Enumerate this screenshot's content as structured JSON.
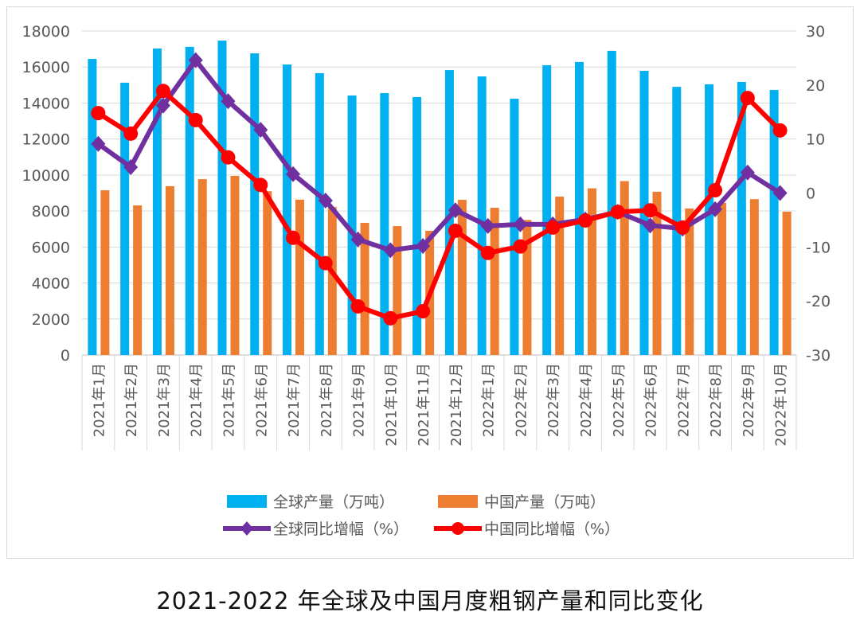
{
  "chart_data": {
    "type": "bar+line",
    "title": "2021-2022 年全球及中国月度粗钢产量和同比变化",
    "categories": [
      "2021年1月",
      "2021年2月",
      "2021年3月",
      "2021年4月",
      "2021年5月",
      "2021年6月",
      "2021年7月",
      "2021年8月",
      "2021年9月",
      "2021年10月",
      "2021年11月",
      "2021年12月",
      "2022年1月",
      "2022年2月",
      "2022年3月",
      "2022年4月",
      "2022年5月",
      "2022年6月",
      "2022年7月",
      "2022年8月",
      "2022年9月",
      "2022年10月"
    ],
    "y_left": {
      "range": [
        0,
        18000
      ],
      "ticks": [
        0,
        2000,
        4000,
        6000,
        8000,
        10000,
        12000,
        14000,
        16000,
        18000
      ]
    },
    "y_right": {
      "range": [
        -30,
        30
      ],
      "ticks": [
        -30,
        -20,
        -10,
        0,
        10,
        20,
        30
      ]
    },
    "grid": true,
    "legend_position": "bottom",
    "series": [
      {
        "name": "全球产量（万吨）",
        "type": "bar",
        "axis": "left",
        "color": "#00b0f0",
        "values": [
          16450,
          15130,
          17030,
          17120,
          17470,
          16760,
          16140,
          15660,
          14420,
          14550,
          14330,
          15830,
          15480,
          14240,
          16100,
          16280,
          16900,
          15790,
          14900,
          15040,
          15170,
          14730
        ]
      },
      {
        "name": "中国产量（万吨）",
        "type": "bar",
        "axis": "left",
        "color": "#ed7d31",
        "values": [
          9150,
          8310,
          9380,
          9770,
          9950,
          9100,
          8630,
          8220,
          7340,
          7160,
          6900,
          8620,
          8180,
          7500,
          8800,
          9260,
          9660,
          9070,
          8140,
          8450,
          8660,
          7960
        ]
      },
      {
        "name": "全球同比增幅（%）",
        "type": "line",
        "axis": "right",
        "color": "#7030a0",
        "marker": "diamond",
        "values": [
          9.1,
          4.8,
          16.2,
          24.6,
          17.0,
          11.7,
          3.5,
          -1.4,
          -8.6,
          -10.6,
          -9.8,
          -3.2,
          -6.1,
          -5.8,
          -5.8,
          -4.9,
          -3.5,
          -6.0,
          -6.6,
          -3.0,
          3.8,
          0.0
        ]
      },
      {
        "name": "中国同比增幅（%）",
        "type": "line",
        "axis": "right",
        "color": "#ff0000",
        "marker": "circle",
        "values": [
          14.8,
          11.0,
          18.9,
          13.5,
          6.6,
          1.5,
          -8.3,
          -13.0,
          -21.0,
          -23.2,
          -21.9,
          -7.0,
          -11.1,
          -9.9,
          -6.4,
          -5.1,
          -3.5,
          -3.2,
          -6.4,
          0.5,
          17.6,
          11.6
        ]
      }
    ]
  }
}
